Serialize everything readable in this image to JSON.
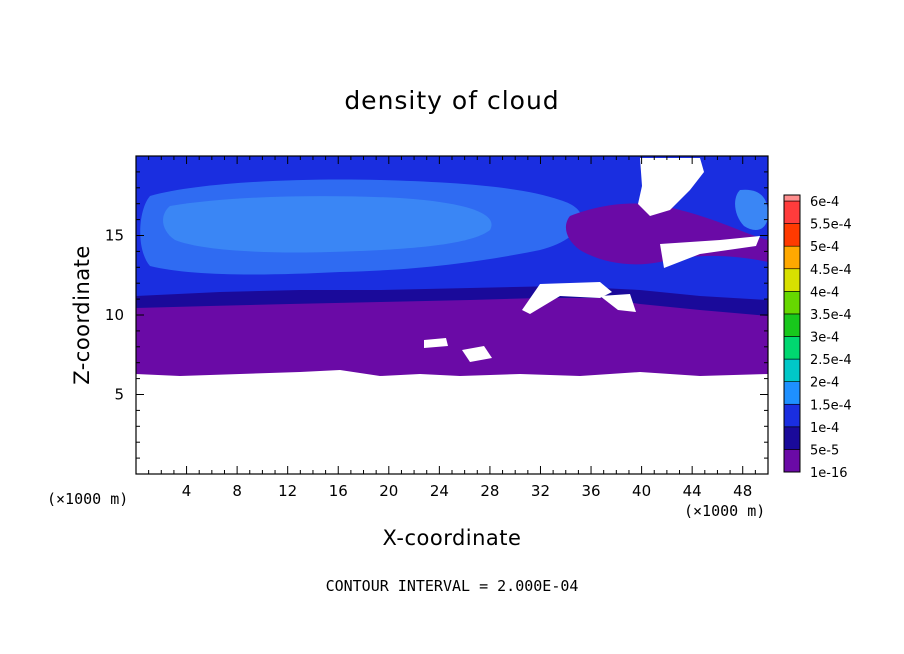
{
  "chart_data": {
    "type": "heatmap",
    "title": "density of cloud",
    "xlabel": "X-coordinate",
    "ylabel": "Z-coordinate",
    "x_unit_left": "(×1000 m)",
    "x_unit_right": "(×1000 m)",
    "xlim": [
      0,
      50
    ],
    "ylim": [
      0,
      20
    ],
    "x_ticks": [
      4,
      8,
      12,
      16,
      20,
      24,
      28,
      32,
      36,
      40,
      44,
      48
    ],
    "y_ticks": [
      5,
      10,
      15
    ],
    "footnote": "CONTOUR INTERVAL = 2.000E-04",
    "colorbar": {
      "levels": [
        "1e-16",
        "5e-5",
        "1e-4",
        "1.5e-4",
        "2e-4",
        "2.5e-4",
        "3e-4",
        "3.5e-4",
        "4e-4",
        "4.5e-4",
        "5e-4",
        "5.5e-4",
        "6e-4"
      ],
      "colors": [
        "#6a0aa6",
        "#1a0a9a",
        "#1a2ee0",
        "#1e90ff",
        "#00c8c8",
        "#00d870",
        "#18c81c",
        "#66d800",
        "#d8e000",
        "#ffa800",
        "#ff3a00",
        "#ff3c3c",
        "#ff8e8e"
      ]
    },
    "regions": [
      {
        "value": "1e-16",
        "z_range": [
          6.2,
          10.6
        ],
        "x_range": [
          0,
          50
        ]
      },
      {
        "value": "5e-5",
        "z_range": [
          10.0,
          11.5
        ],
        "x_range": [
          0,
          50
        ]
      },
      {
        "value": "1e-4",
        "z_range": [
          11.0,
          19.5
        ],
        "x_range": [
          0,
          50
        ]
      },
      {
        "value": "1.5e-4",
        "z_range": [
          13.0,
          18.0
        ],
        "x_range": [
          1,
          33
        ]
      }
    ]
  }
}
